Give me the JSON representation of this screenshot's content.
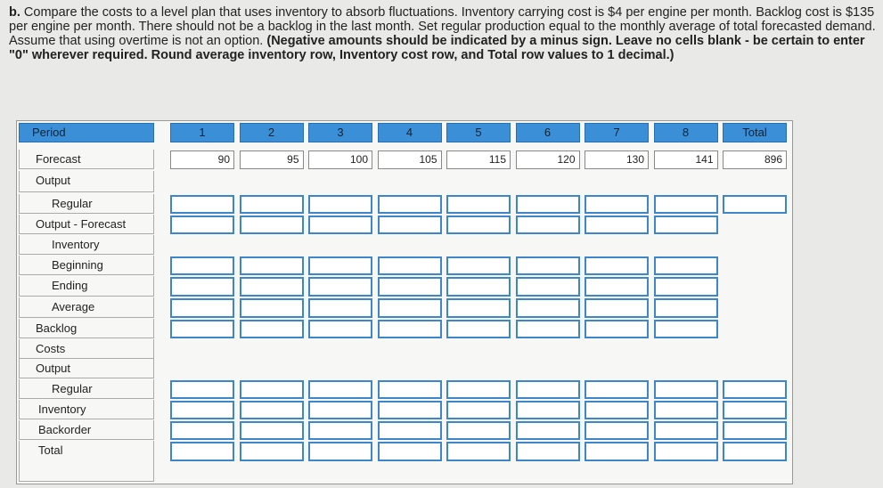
{
  "instructions": {
    "prefix": "b.",
    "text": "Compare the costs to a level plan that uses inventory to absorb fluctuations. Inventory carrying cost is $4 per engine per month. Backlog cost is $135 per engine per month. There should not be a backlog in the last month. Set regular production equal to the monthly average of total forecasted demand. Assume that using overtime is not an option.",
    "bold": "(Negative amounts should be indicated by a minus sign. Leave no cells blank - be certain to enter \"0\" wherever required. Round average inventory row, Inventory cost row, and Total row values to 1 decimal.)"
  },
  "table": {
    "header": "Period",
    "columns": [
      "1",
      "2",
      "3",
      "4",
      "5",
      "6",
      "7",
      "8",
      "Total"
    ],
    "rows": [
      "Forecast",
      "Output",
      "Regular",
      "Output - Forecast",
      "Inventory",
      "Beginning",
      "Ending",
      "Average",
      "Backlog",
      "Costs",
      "Output",
      "Regular",
      "Inventory",
      "Backorder",
      "Total"
    ],
    "forecast": [
      90,
      95,
      100,
      105,
      115,
      120,
      130,
      141,
      896
    ]
  }
}
